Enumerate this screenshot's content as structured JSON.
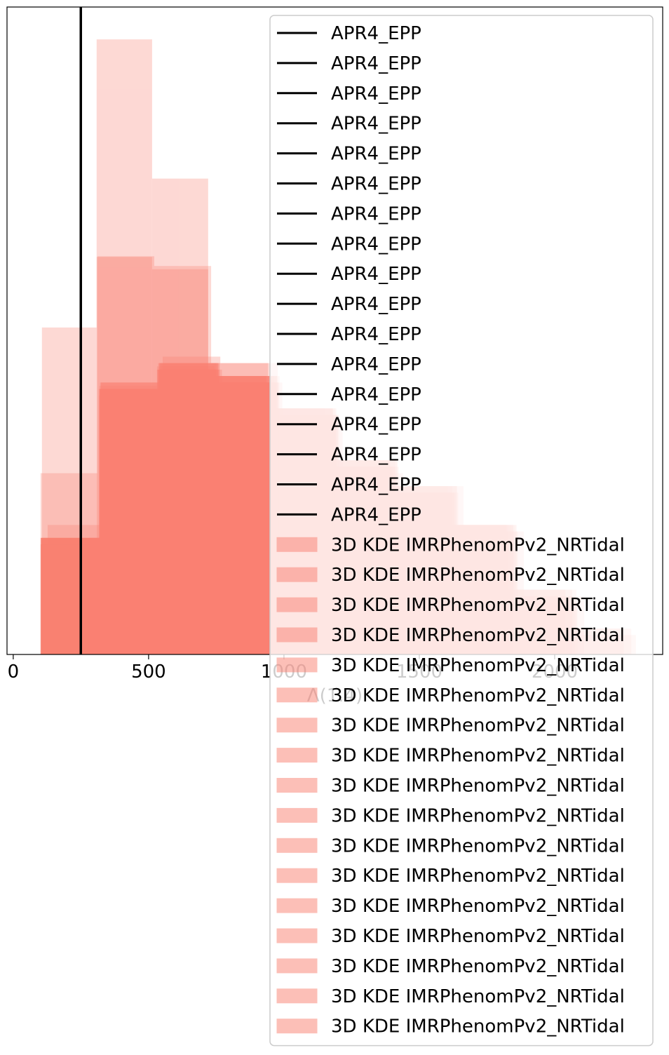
{
  "chart_data": {
    "type": "histogram",
    "xlabel": "Λ(1.4)",
    "xlim": [
      -23,
      2399
    ],
    "ylim": [
      0,
      1
    ],
    "xticks": [
      0,
      500,
      1000,
      1500,
      2000
    ],
    "alpha": 0.3,
    "vlines": [
      {
        "name": "APR4_EPP",
        "x": 250,
        "color": "#000000"
      },
      {
        "name": "APR4_EPP",
        "x": 250,
        "color": "#000000"
      },
      {
        "name": "APR4_EPP",
        "x": 250,
        "color": "#000000"
      },
      {
        "name": "APR4_EPP",
        "x": 250,
        "color": "#000000"
      },
      {
        "name": "APR4_EPP",
        "x": 250,
        "color": "#000000"
      },
      {
        "name": "APR4_EPP",
        "x": 250,
        "color": "#000000"
      },
      {
        "name": "APR4_EPP",
        "x": 250,
        "color": "#000000"
      },
      {
        "name": "APR4_EPP",
        "x": 250,
        "color": "#000000"
      },
      {
        "name": "APR4_EPP",
        "x": 250,
        "color": "#000000"
      },
      {
        "name": "APR4_EPP",
        "x": 250,
        "color": "#000000"
      },
      {
        "name": "APR4_EPP",
        "x": 250,
        "color": "#000000"
      },
      {
        "name": "APR4_EPP",
        "x": 250,
        "color": "#000000"
      },
      {
        "name": "APR4_EPP",
        "x": 250,
        "color": "#000000"
      },
      {
        "name": "APR4_EPP",
        "x": 250,
        "color": "#000000"
      },
      {
        "name": "APR4_EPP",
        "x": 250,
        "color": "#000000"
      },
      {
        "name": "APR4_EPP",
        "x": 250,
        "color": "#000000"
      },
      {
        "name": "APR4_EPP",
        "x": 250,
        "color": "#000000"
      }
    ],
    "series": [
      {
        "name": "3D KDE IMRPhenomPv2_NRTidal",
        "color": "#fa8072",
        "bins": [
          308,
          513,
          720,
          935,
          1181,
          1401,
          1635
        ],
        "values": [
          0.95,
          0.735,
          0.43,
          0.38,
          0.285,
          0.25
        ]
      },
      {
        "name": "3D KDE IMRPhenomPv2_NRTidal",
        "color": "#fa8072",
        "bins": [
          106,
          308,
          513,
          720,
          935,
          1181,
          1401
        ],
        "values": [
          0.505,
          0.614,
          0.595,
          0.43,
          0.38,
          0.28
        ]
      },
      {
        "name": "3D KDE IMRPhenomPv2_NRTidal",
        "color": "#fa8072",
        "bins": [
          101,
          311,
          521,
          731,
          941,
          1151,
          1361
        ],
        "values": [
          0.28,
          0.615,
          0.6,
          0.45,
          0.38,
          0.27
        ]
      },
      {
        "name": "3D KDE IMRPhenomPv2_NRTidal",
        "color": "#fa8072",
        "bins": [
          127,
          340,
          552,
          765,
          977,
          1190,
          1402
        ],
        "values": [
          0.2,
          0.41,
          0.46,
          0.45,
          0.38,
          0.27
        ]
      },
      {
        "name": "3D KDE IMRPhenomPv2_NRTidal",
        "color": "#fa8072",
        "bins": [
          106,
          318,
          531,
          743,
          955,
          1168,
          1380
        ],
        "values": [
          0.18,
          0.415,
          0.445,
          0.43,
          0.36,
          0.26
        ]
      },
      {
        "name": "3D KDE IMRPhenomPv2_NRTidal",
        "color": "#fa8072",
        "bins": [
          101,
          320,
          540,
          760,
          980,
          1200,
          1420,
          1640,
          1860,
          2080,
          2300
        ],
        "values": [
          0.18,
          0.42,
          0.45,
          0.42,
          0.37,
          0.3,
          0.26,
          0.2,
          0.1,
          0.03
        ]
      },
      {
        "name": "3D KDE IMRPhenomPv2_NRTidal",
        "color": "#fa8072",
        "bins": [
          104,
          322,
          540,
          758,
          976,
          1194,
          1412,
          1630,
          1848,
          2066
        ],
        "values": [
          0.18,
          0.41,
          0.44,
          0.42,
          0.38,
          0.29,
          0.25,
          0.2,
          0.09
        ]
      },
      {
        "name": "3D KDE IMRPhenomPv2_NRTidal",
        "color": "#fa8072",
        "bins": [
          103,
          318,
          533,
          748,
          963,
          1178,
          1393,
          1608,
          1823,
          2038
        ],
        "values": [
          0.17,
          0.41,
          0.44,
          0.43,
          0.37,
          0.3,
          0.24,
          0.2,
          0.1
        ]
      },
      {
        "name": "3D KDE IMRPhenomPv2_NRTidal",
        "color": "#fa8072",
        "bins": [
          102,
          325,
          548,
          771,
          994,
          1217,
          1440,
          1663,
          1886,
          2109
        ],
        "values": [
          0.18,
          0.4,
          0.44,
          0.42,
          0.36,
          0.28,
          0.26,
          0.19,
          0.09
        ]
      },
      {
        "name": "3D KDE IMRPhenomPv2_NRTidal",
        "color": "#fa8072",
        "bins": [
          105,
          320,
          535,
          750,
          965,
          1180,
          1395,
          1610,
          1825,
          2040,
          2255
        ],
        "values": [
          0.18,
          0.41,
          0.45,
          0.42,
          0.37,
          0.29,
          0.25,
          0.2,
          0.1,
          0.04
        ]
      },
      {
        "name": "3D KDE IMRPhenomPv2_NRTidal",
        "color": "#fa8072",
        "bins": [
          101,
          316,
          531,
          746,
          961,
          1176,
          1391,
          1606,
          1821
        ],
        "values": [
          0.17,
          0.41,
          0.44,
          0.42,
          0.38,
          0.3,
          0.26,
          0.2
        ]
      },
      {
        "name": "3D KDE IMRPhenomPv2_NRTidal",
        "color": "#fa8072",
        "bins": [
          104,
          324,
          544,
          764,
          984,
          1204,
          1424,
          1644,
          1864,
          2084
        ],
        "values": [
          0.18,
          0.42,
          0.45,
          0.43,
          0.37,
          0.29,
          0.25,
          0.19,
          0.08
        ]
      },
      {
        "name": "3D KDE IMRPhenomPv2_NRTidal",
        "color": "#fa8072",
        "bins": [
          102,
          319,
          536,
          753,
          970,
          1187,
          1404,
          1621,
          1838
        ],
        "values": [
          0.18,
          0.41,
          0.44,
          0.42,
          0.37,
          0.29,
          0.26,
          0.2
        ]
      },
      {
        "name": "3D KDE IMRPhenomPv2_NRTidal",
        "color": "#fa8072",
        "bins": [
          103,
          321,
          539,
          757,
          975,
          1193,
          1411,
          1629,
          1847,
          2065,
          2283
        ],
        "values": [
          0.17,
          0.41,
          0.45,
          0.43,
          0.36,
          0.3,
          0.25,
          0.19,
          0.1,
          0.04
        ]
      },
      {
        "name": "3D KDE IMRPhenomPv2_NRTidal",
        "color": "#fa8072",
        "bins": [
          101,
          317,
          533,
          749,
          965,
          1181,
          1397,
          1613,
          1829
        ],
        "values": [
          0.18,
          0.4,
          0.44,
          0.42,
          0.38,
          0.29,
          0.25,
          0.2
        ]
      },
      {
        "name": "3D KDE IMRPhenomPv2_NRTidal",
        "color": "#fa8072",
        "bins": [
          104,
          323,
          542,
          761,
          980,
          1199,
          1418,
          1637,
          1856,
          2075
        ],
        "values": [
          0.18,
          0.42,
          0.44,
          0.42,
          0.37,
          0.3,
          0.26,
          0.2,
          0.09
        ]
      },
      {
        "name": "3D KDE IMRPhenomPv2_NRTidal",
        "color": "#fa8072",
        "bins": [
          102,
          320,
          538,
          756,
          974,
          1192,
          1410,
          1628,
          1846
        ],
        "values": [
          0.17,
          0.41,
          0.45,
          0.43,
          0.37,
          0.29,
          0.25,
          0.2
        ]
      }
    ]
  }
}
